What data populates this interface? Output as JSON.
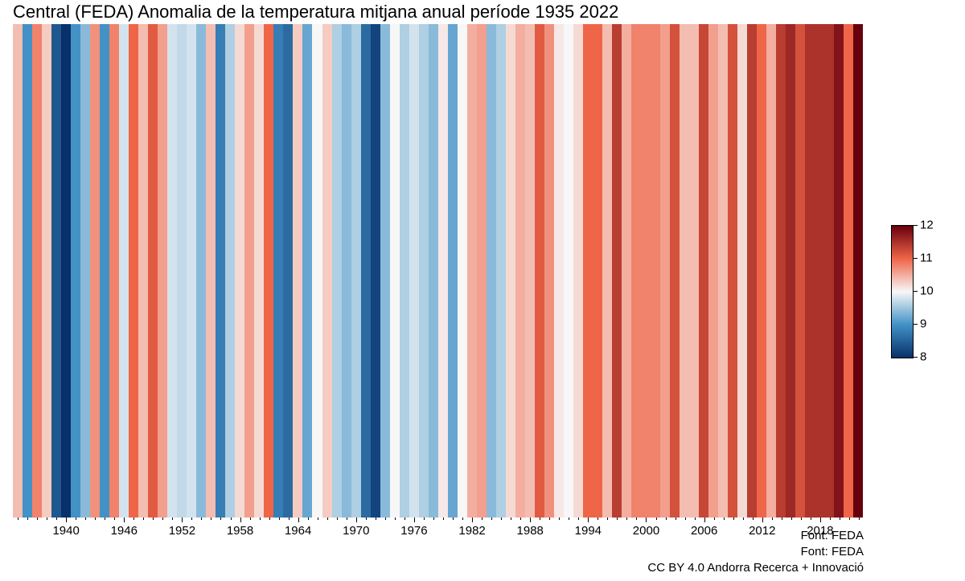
{
  "chart": {
    "type": "warming-stripes",
    "title": "Central (FEDA) Anomalia de la temperatura mitjana anual període 1935 2022",
    "title_fontsize": 22,
    "background_color": "#ffffff",
    "year_start": 1935,
    "year_end": 2022,
    "value_min": 8,
    "value_max": 12,
    "neutral_value": 10,
    "values": [
      10.4,
      9.0,
      10.8,
      10.3,
      8.4,
      8.0,
      9.0,
      9.4,
      10.7,
      9.0,
      10.8,
      9.8,
      11.0,
      10.4,
      11.1,
      10.6,
      9.8,
      9.7,
      9.8,
      9.4,
      10.4,
      8.8,
      9.6,
      10.2,
      10.6,
      10.2,
      11.0,
      8.8,
      8.6,
      10.3,
      9.2,
      10.0,
      10.3,
      9.6,
      9.4,
      9.6,
      8.6,
      8.2,
      9.4,
      10.0,
      9.6,
      9.8,
      9.6,
      9.4,
      10.1,
      9.2,
      10.0,
      10.5,
      10.6,
      9.4,
      9.6,
      10.2,
      10.5,
      10.4,
      11.1,
      10.7,
      10.1,
      10.0,
      10.2,
      11.0,
      11.0,
      10.4,
      11.4,
      10.5,
      10.8,
      10.8,
      10.8,
      10.6,
      11.2,
      10.4,
      10.4,
      11.3,
      10.6,
      10.4,
      11.2,
      10.2,
      11.4,
      11.0,
      10.5,
      11.4,
      11.6,
      11.2,
      11.5,
      11.5,
      11.5,
      11.8,
      11.0,
      12.4
    ],
    "colormap": {
      "type": "diverging",
      "low_color": "#08306b",
      "mid_low_color": "#4292c6",
      "mid_color": "#f7f7f7",
      "mid_high_color": "#ef6548",
      "high_color": "#67000d"
    },
    "x_axis": {
      "major_ticks": [
        1940,
        1946,
        1952,
        1958,
        1964,
        1970,
        1976,
        1982,
        1988,
        1994,
        2000,
        2006,
        2012,
        2018
      ],
      "minor_step": 1,
      "label_fontsize": 15
    },
    "colorbar": {
      "ticks": [
        8,
        9,
        10,
        11,
        12
      ],
      "label_fontsize": 15
    },
    "credits": [
      "Font: FEDA",
      "Font: FEDA",
      "CC BY 4.0 Andorra Recerca + Innovació"
    ]
  }
}
